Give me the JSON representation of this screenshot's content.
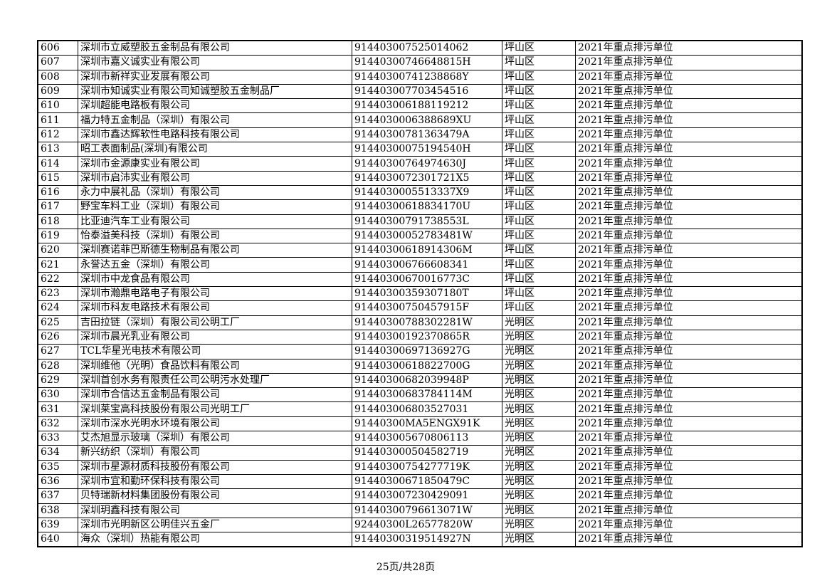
{
  "table": {
    "rows": [
      [
        "606",
        "深圳市立威塑胶五金制品有限公司",
        "914403007525014062",
        "坪山区",
        "2021年重点排污单位"
      ],
      [
        "607",
        "深圳市嘉义诚实业有限公司",
        "91440300746648815H",
        "坪山区",
        "2021年重点排污单位"
      ],
      [
        "608",
        "深圳市新祥实业发展有限公司",
        "91440300741238868Y",
        "坪山区",
        "2021年重点排污单位"
      ],
      [
        "609",
        "深圳市知诚实业有限公司知诚塑胶五金制品厂",
        "914403007703454516",
        "坪山区",
        "2021年重点排污单位"
      ],
      [
        "610",
        "深圳超能电路板有限公司",
        "914403006188119212",
        "坪山区",
        "2021年重点排污单位"
      ],
      [
        "611",
        "福力特五金制品（深圳）有限公司",
        "9144030006388689XU",
        "坪山区",
        "2021年重点排污单位"
      ],
      [
        "612",
        "深圳市鑫达辉软性电路科技有限公司",
        "91440300781363479A",
        "坪山区",
        "2021年重点排污单位"
      ],
      [
        "613",
        "昭工表面制品(深圳)有限公司",
        "91440300075194540H",
        "坪山区",
        "2021年重点排污单位"
      ],
      [
        "614",
        "深圳市金源康实业有限公司",
        "91440300764974630J",
        "坪山区",
        "2021年重点排污单位"
      ],
      [
        "615",
        "深圳市启沛实业有限公司",
        "9144030072301721X5",
        "坪山区",
        "2021年重点排污单位"
      ],
      [
        "616",
        "永力中展礼品（深圳）有限公司",
        "9144030005513337X9",
        "坪山区",
        "2021年重点排污单位"
      ],
      [
        "617",
        "野宝车料工业（深圳）有限公司",
        "91440300618834170U",
        "坪山区",
        "2021年重点排污单位"
      ],
      [
        "618",
        "比亚迪汽车工业有限公司",
        "91440300791738553L",
        "坪山区",
        "2021年重点排污单位"
      ],
      [
        "619",
        "怡泰溢美科技（深圳）有限公司",
        "91440300052783481W",
        "坪山区",
        "2021年重点排污单位"
      ],
      [
        "620",
        "深圳赛诺菲巴斯德生物制品有限公司",
        "91440300618914306M",
        "坪山区",
        "2021年重点排污单位"
      ],
      [
        "621",
        "永誉达五金（深圳）有限公司",
        "914403006766608341",
        "坪山区",
        "2021年重点排污单位"
      ],
      [
        "622",
        "深圳市中龙食品有限公司",
        "91440300670016773C",
        "坪山区",
        "2021年重点排污单位"
      ],
      [
        "623",
        "深圳市瀚鼎电路电子有限公司",
        "91440300359307180T",
        "坪山区",
        "2021年重点排污单位"
      ],
      [
        "624",
        "深圳市科友电路技术有限公司",
        "91440300750457915F",
        "坪山区",
        "2021年重点排污单位"
      ],
      [
        "625",
        "吉田拉链（深圳）有限公司公明工厂",
        "91440300788302281W",
        "光明区",
        "2021年重点排污单位"
      ],
      [
        "626",
        "深圳市晨光乳业有限公司",
        "91440300192370865R",
        "光明区",
        "2021年重点排污单位"
      ],
      [
        "627",
        "TCL华星光电技术有限公司",
        "91440300697136927G",
        "光明区",
        "2021年重点排污单位"
      ],
      [
        "628",
        "深圳维他（光明）食品饮料有限公司",
        "91440300618822700G",
        "光明区",
        "2021年重点排污单位"
      ],
      [
        "629",
        "深圳首创水务有限责任公司公明污水处理厂",
        "91440300682039948P",
        "光明区",
        "2021年重点排污单位"
      ],
      [
        "630",
        "深圳市合信达五金制品有限公司",
        "91440300683784114M",
        "光明区",
        "2021年重点排污单位"
      ],
      [
        "631",
        "深圳莱宝高科技股份有限公司光明工厂",
        "914403006803527031",
        "光明区",
        "2021年重点排污单位"
      ],
      [
        "632",
        "深圳市深水光明水环境有限公司",
        "91440300MA5ENGX91K",
        "光明区",
        "2021年重点排污单位"
      ],
      [
        "633",
        "艾杰旭显示玻璃（深圳）有限公司",
        "914403005670806113",
        "光明区",
        "2021年重点排污单位"
      ],
      [
        "634",
        "新兴纺织（深圳）有限公司",
        "914403000504582719",
        "光明区",
        "2021年重点排污单位"
      ],
      [
        "635",
        "深圳市星源材质科技股份有限公司",
        "91440300754277719K",
        "光明区",
        "2021年重点排污单位"
      ],
      [
        "636",
        "深圳市宜和勤环保科技有限公司",
        "91440300671850479C",
        "光明区",
        "2021年重点排污单位"
      ],
      [
        "637",
        "贝特瑞新材料集团股份有限公司",
        "914403007230429091",
        "光明区",
        "2021年重点排污单位"
      ],
      [
        "638",
        "深圳玥鑫科技有限公司",
        "91440300796613071W",
        "光明区",
        "2021年重点排污单位"
      ],
      [
        "639",
        "深圳市光明新区公明佳兴五金厂",
        "92440300L26577820W",
        "光明区",
        "2021年重点排污单位"
      ],
      [
        "640",
        "海众（深圳）热能有限公司",
        "91440300319514927N",
        "光明区",
        "2021年重点排污单位"
      ]
    ]
  },
  "footer": {
    "page_label": "25页/共28页"
  }
}
